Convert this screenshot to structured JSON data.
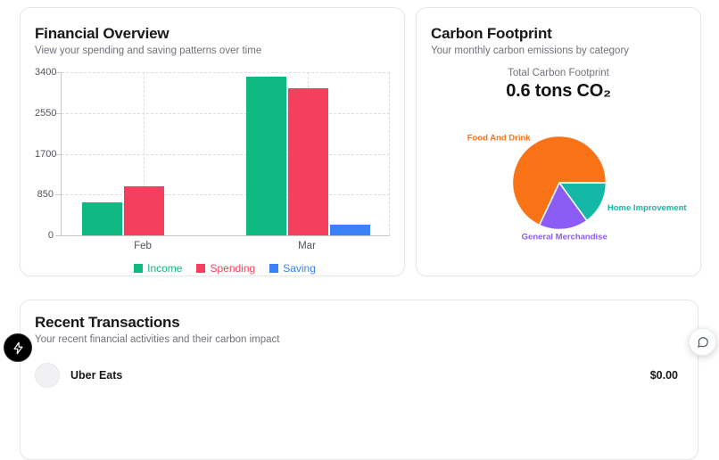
{
  "financial_overview": {
    "title": "Financial Overview",
    "subtitle": "View your spending and saving patterns over time"
  },
  "carbon_footprint": {
    "title": "Carbon Footprint",
    "subtitle": "Your monthly carbon emissions by category",
    "total_label": "Total Carbon Footprint",
    "total_value": "0.6 tons CO₂"
  },
  "recent_transactions": {
    "title": "Recent Transactions",
    "subtitle": "Your recent financial activities and their carbon impact",
    "rows": [
      {
        "name": "Uber Eats",
        "amount": "$0.00"
      }
    ]
  },
  "chart_data": [
    {
      "type": "bar",
      "title": "Financial Overview",
      "categories": [
        "Feb",
        "Mar"
      ],
      "series": [
        {
          "name": "Income",
          "color": "#10b981",
          "values": [
            680,
            3300
          ]
        },
        {
          "name": "Spending",
          "color": "#f43f5e",
          "values": [
            1020,
            3060
          ]
        },
        {
          "name": "Saving",
          "color": "#3b82f6",
          "values": [
            0,
            230
          ]
        }
      ],
      "xlabel": "",
      "ylabel": "",
      "ylim": [
        0,
        3400
      ],
      "yticks": [
        0,
        850,
        1700,
        2550,
        3400
      ],
      "grid": "dashed",
      "legend_position": "bottom"
    },
    {
      "type": "pie",
      "title": "Carbon Footprint",
      "total_label": "Total Carbon Footprint",
      "total_value": "0.6 tons CO₂",
      "start_angle_deg": 0,
      "direction": "clockwise",
      "slices": [
        {
          "label": "Home Improvement",
          "percent": 15,
          "color": "#14b8a6"
        },
        {
          "label": "General Merchandise",
          "percent": 17,
          "color": "#8b5cf6"
        },
        {
          "label": "Food And Drink",
          "percent": 68,
          "color": "#f97316"
        }
      ]
    }
  ],
  "icons": {
    "dev_badge": "lightning-icon",
    "chat_launcher": "chat-bubble-icon"
  },
  "colors": {
    "income": "#10b981",
    "spending": "#f43f5e",
    "saving": "#3b82f6",
    "food_and_drink": "#f97316",
    "home_improvement": "#14b8a6",
    "general_merchandise": "#8b5cf6",
    "card_border": "#e7e7ea"
  }
}
